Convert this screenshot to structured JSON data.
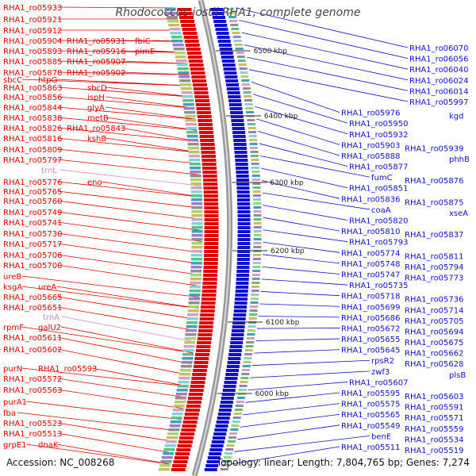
{
  "title": "Rhodococcus jostii RHA1, complete genome",
  "footer": {
    "accession": "Accession: NC_008268",
    "summary": "Topology: linear; Length: 7,804,765 bp; Genes: 7,274"
  },
  "colors": {
    "forward_strand": "#e00000",
    "reverse_strand": "#1010cc",
    "rna": "#cc88cc",
    "backbone": "#808080",
    "tick": "#118811"
  },
  "ticks": [
    "6500 kbp",
    "6400 kbp",
    "6300 kbp",
    "6200 kbp",
    "6100 kbp",
    "6000 kbp"
  ],
  "left_labels": [
    "RHA1_ro05933",
    "RHA1_ro05921",
    "RHA1_ro05912",
    "RHA1_ro05904",
    "RHA1_ro05931",
    "fbiC",
    "RHA1_ro05893",
    "RHA1_ro05916",
    "pimE",
    "RHA1_ro05885",
    "RHA1_ro05907",
    "RHA1_ro05878",
    "RHA1_ro05902",
    "sbcC",
    "htpG",
    "RHA1_ro05863",
    "sbcD",
    "RHA1_ro05856",
    "ispH",
    "RHA1_ro05844",
    "glyA",
    "RHA1_ro05838",
    "metB",
    "RHA1_ro05826",
    "RHA1_ro05843",
    "RHA1_ro05816",
    "kshB",
    "RHA1_ro05809",
    "RHA1_ro05797",
    "trnL",
    "RHA1_ro05776",
    "eno",
    "RHA1_ro05765",
    "RHA1_ro05760",
    "RHA1_ro05749",
    "RHA1_ro05741",
    "RHA1_ro05730",
    "RHA1_ro05717",
    "RHA1_ro05706",
    "RHA1_ro05700",
    "ureB",
    "ksgA",
    "ureA",
    "RHA1_ro05665",
    "RHA1_ro05651",
    "trnA",
    "rpmF",
    "galU2",
    "RHA1_ro05611",
    "RHA1_ro05602",
    "purN",
    "RHA1_ro05593",
    "RHA1_ro05572",
    "RHA1_ro05563",
    "purA1",
    "fba",
    "RHA1_ro05523",
    "RHA1_ro05513",
    "grpE1",
    "dnaK"
  ],
  "right_labels": [
    "RHA1_ro06070",
    "RHA1_ro06056",
    "RHA1_ro06040",
    "RHA1_ro06024",
    "RHA1_ro06014",
    "RHA1_ro05997",
    "RHA1_ro05976",
    "kgd",
    "RHA1_ro05950",
    "RHA1_ro05932",
    "RHA1_ro05903",
    "RHA1_ro05939",
    "RHA1_ro05888",
    "phhB",
    "RHA1_ro05877",
    "fumC",
    "RHA1_ro05876",
    "RHA1_ro05851",
    "RHA1_ro05836",
    "RHA1_ro05875",
    "coaA",
    "xseA",
    "RHA1_ro05820",
    "RHA1_ro05810",
    "RHA1_ro05837",
    "RHA1_ro05793",
    "RHA1_ro05774",
    "RHA1_ro05811",
    "RHA1_ro05748",
    "RHA1_ro05794",
    "RHA1_ro05747",
    "RHA1_ro05773",
    "RHA1_ro05735",
    "RHA1_ro05718",
    "RHA1_ro05736",
    "RHA1_ro05699",
    "RHA1_ro05714",
    "RHA1_ro05686",
    "RHA1_ro05705",
    "RHA1_ro05672",
    "RHA1_ro05694",
    "RHA1_ro05655",
    "RHA1_ro05675",
    "RHA1_ro05645",
    "RHA1_ro05662",
    "rpsR2",
    "RHA1_ro05628",
    "zwf3",
    "plsB",
    "RHA1_ro05607",
    "RHA1_ro05595",
    "RHA1_ro05603",
    "RHA1_ro05575",
    "RHA1_ro05591",
    "RHA1_ro05565",
    "RHA1_ro05571",
    "RHA1_ro05549",
    "RHA1_ro05559",
    "benE",
    "RHA1_ro05534",
    "RHA1_ro05511",
    "RHA1_ro05519"
  ]
}
